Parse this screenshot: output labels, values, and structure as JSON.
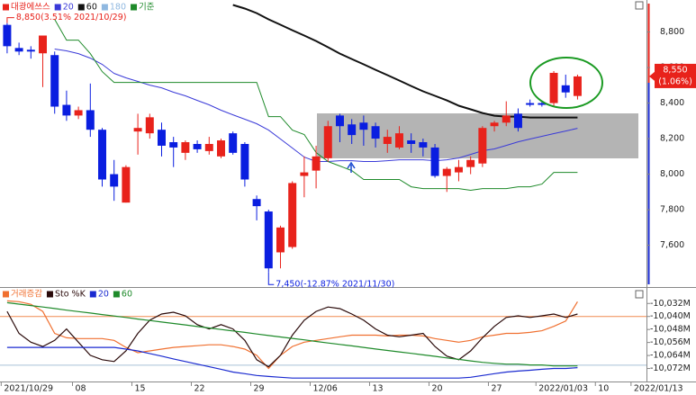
{
  "chart_data": [
    {
      "type": "candlestick",
      "name": "대광에쓰스",
      "up_color": "#e8221b",
      "down_color": "#0a1ee0",
      "open": [
        8840,
        8710,
        8700,
        8680,
        8670,
        8390,
        8330,
        8360,
        8250,
        8000,
        7840,
        8240,
        8230,
        8250,
        8180,
        8120,
        8170,
        8130,
        8100,
        8230,
        8170,
        7860,
        7790,
        7560,
        7590,
        7990,
        8020,
        8090,
        8330,
        8280,
        8290,
        8270,
        8170,
        8150,
        8190,
        8180,
        8150,
        7990,
        8010,
        8040,
        8060,
        8270,
        8290,
        8340,
        8400,
        8400,
        8400,
        8500,
        8440
      ],
      "high": [
        8850,
        8740,
        8720,
        8780,
        8690,
        8470,
        8380,
        8510,
        8260,
        8080,
        8050,
        8340,
        8340,
        8290,
        8210,
        8190,
        8190,
        8210,
        8200,
        8240,
        8180,
        7880,
        7800,
        7710,
        7960,
        8100,
        8160,
        8300,
        8340,
        8310,
        8330,
        8290,
        8250,
        8270,
        8230,
        8200,
        8170,
        8040,
        8080,
        8100,
        8270,
        8300,
        8410,
        8370,
        8420,
        8410,
        8580,
        8560,
        8560
      ],
      "low": [
        8680,
        8670,
        8650,
        8490,
        8340,
        8300,
        8310,
        8210,
        7930,
        7850,
        7840,
        8110,
        8200,
        8100,
        8040,
        8080,
        8120,
        8110,
        8090,
        8110,
        7930,
        7740,
        7450,
        7470,
        7580,
        7870,
        7920,
        8070,
        8180,
        8170,
        8160,
        8150,
        8120,
        8140,
        8120,
        8100,
        7980,
        7900,
        7960,
        8000,
        8040,
        8240,
        8270,
        8240,
        8380,
        8380,
        8380,
        8430,
        8420
      ],
      "close": [
        8720,
        8690,
        8690,
        8780,
        8380,
        8330,
        8360,
        8250,
        7970,
        7930,
        8040,
        8260,
        8320,
        8160,
        8150,
        8180,
        8140,
        8170,
        8190,
        8120,
        7970,
        7820,
        7470,
        7700,
        7950,
        8010,
        8100,
        8270,
        8270,
        8220,
        8250,
        8200,
        8210,
        8230,
        8170,
        8150,
        7990,
        8030,
        8040,
        8080,
        8260,
        8290,
        8330,
        8260,
        8390,
        8390,
        8570,
        8460,
        8550
      ],
      "series": [
        {
          "name": "20",
          "color": "#3a3ad8",
          "width": 1,
          "values": [
            null,
            null,
            null,
            null,
            8704,
            8694,
            8678,
            8653,
            8618,
            8567,
            8542,
            8522,
            8501,
            8486,
            8461,
            8441,
            8415,
            8390,
            8360,
            8334,
            8309,
            8284,
            8248,
            8198,
            8147,
            8096,
            8071,
            8071,
            8076,
            8076,
            8071,
            8071,
            8076,
            8081,
            8081,
            8081,
            8076,
            8081,
            8091,
            8111,
            8132,
            8142,
            8162,
            8182,
            8198,
            8213,
            8228,
            8243,
            8258
          ]
        },
        {
          "name": "60",
          "color": "#111111",
          "width": 2,
          "values": [
            null,
            null,
            null,
            null,
            null,
            null,
            null,
            null,
            null,
            null,
            null,
            null,
            null,
            null,
            null,
            null,
            null,
            null,
            null,
            8952,
            8932,
            8906,
            8871,
            8841,
            8810,
            8780,
            8749,
            8714,
            8678,
            8648,
            8618,
            8587,
            8557,
            8527,
            8496,
            8466,
            8441,
            8415,
            8385,
            8365,
            8344,
            8329,
            8324,
            8324,
            8319,
            8319,
            8319,
            8319,
            8319
          ]
        },
        {
          "name": "180",
          "color": "#8fb8e0",
          "width": 1,
          "values": [
            null,
            null,
            null,
            null,
            null,
            null,
            null,
            null,
            null,
            null,
            null,
            null,
            null,
            null,
            null,
            null,
            null,
            null,
            null,
            null,
            null,
            null,
            null,
            null,
            null,
            null,
            null,
            null,
            null,
            null,
            null,
            null,
            null,
            null,
            null,
            null,
            null,
            null,
            null,
            null,
            null,
            null,
            null,
            null,
            null,
            null,
            null,
            null,
            null
          ]
        },
        {
          "name": "기준",
          "color": "#1e8a2a",
          "width": 1,
          "values": [
            null,
            null,
            null,
            null,
            8871,
            8754,
            8754,
            8678,
            8577,
            8516,
            8516,
            8516,
            8516,
            8516,
            8516,
            8516,
            8516,
            8516,
            8516,
            8516,
            8516,
            8516,
            8324,
            8324,
            8248,
            8223,
            8122,
            8071,
            8046,
            8020,
            7970,
            7970,
            7970,
            7970,
            7929,
            7919,
            7919,
            7919,
            7919,
            7909,
            7919,
            7919,
            7919,
            7929,
            7929,
            7944,
            8010,
            8010,
            8010
          ]
        }
      ],
      "annotations": [
        {
          "text": "8,850(3.51% 2021/10/29)",
          "color": "#e8221b"
        },
        {
          "text": "7,450(-12.87% 2021/11/30)",
          "color": "#0a1ee0"
        }
      ],
      "last_label": "8,550",
      "last_change": "(1.06%)",
      "last_color": "#e8221b",
      "xlim": [
        -0.6,
        53.8
      ],
      "ylim": [
        7370,
        8980
      ],
      "yticks": [
        {
          "value": 8800,
          "label": "8,800"
        },
        {
          "value": 8600,
          "label": "8,600"
        },
        {
          "value": 8400,
          "label": "8,400"
        },
        {
          "value": 8200,
          "label": "8,200"
        },
        {
          "value": 8000,
          "label": "8,000"
        },
        {
          "value": 7800,
          "label": "7,800"
        },
        {
          "value": 7600,
          "label": "7,600"
        }
      ]
    },
    {
      "type": "line",
      "series": [
        {
          "name": "거래증감",
          "color": "#f07030",
          "values": [
            -10030.4,
            -10030.9,
            -10032.5,
            -10036.9,
            -10050.4,
            -10053.1,
            -10053.6,
            -10053.6,
            -10053.6,
            -10054.7,
            -10059.0,
            -10062.3,
            -10061.2,
            -10060.1,
            -10059.0,
            -10058.5,
            -10058.0,
            -10057.4,
            -10057.4,
            -10058.5,
            -10060.1,
            -10063.9,
            -10072.0,
            -10063.9,
            -10058.5,
            -10055.8,
            -10054.7,
            -10053.6,
            -10052.5,
            -10051.5,
            -10051.5,
            -10051.5,
            -10052.0,
            -10051.5,
            -10051.5,
            -10052.0,
            -10053.6,
            -10054.7,
            -10055.8,
            -10054.7,
            -10052.5,
            -10051.5,
            -10050.4,
            -10050.4,
            -10049.8,
            -10048.8,
            -10046.1,
            -10042.8,
            -10030.9
          ]
        },
        {
          "name": "Sto %K",
          "color": "#2a0a0a",
          "values": [
            -10036.9,
            -10050.4,
            -10055.8,
            -10058.5,
            -10054.7,
            -10047.7,
            -10055.8,
            -10063.9,
            -10066.6,
            -10067.7,
            -10061.2,
            -10050.4,
            -10042.3,
            -10038.5,
            -10037.4,
            -10039.6,
            -10045.0,
            -10047.7,
            -10045.0,
            -10047.7,
            -10054.7,
            -10066.6,
            -10070.9,
            -10063.9,
            -10051.5,
            -10042.3,
            -10036.9,
            -10034.2,
            -10035.2,
            -10038.5,
            -10042.3,
            -10047.7,
            -10051.5,
            -10052.5,
            -10051.5,
            -10050.4,
            -10058.5,
            -10064.4,
            -10066.6,
            -10061.2,
            -10053.1,
            -10046.1,
            -10040.6,
            -10039.6,
            -10040.6,
            -10039.6,
            -10038.5,
            -10040.6,
            -10038.5
          ]
        },
        {
          "name": "20",
          "color": "#1a2ad0",
          "values": [
            -10059.0,
            -10059.0,
            -10059.0,
            -10059.0,
            -10059.0,
            -10059.0,
            -10059.0,
            -10059.0,
            -10059.0,
            -10059.0,
            -10060.1,
            -10061.2,
            -10062.8,
            -10064.4,
            -10066.1,
            -10067.7,
            -10069.3,
            -10070.9,
            -10072.5,
            -10074.2,
            -10075.2,
            -10076.3,
            -10076.9,
            -10077.4,
            -10077.9,
            -10077.9,
            -10077.9,
            -10077.9,
            -10077.9,
            -10077.9,
            -10077.9,
            -10077.9,
            -10077.9,
            -10077.9,
            -10077.9,
            -10077.9,
            -10077.9,
            -10077.9,
            -10077.9,
            -10077.4,
            -10076.3,
            -10075.2,
            -10074.2,
            -10073.6,
            -10073.1,
            -10072.5,
            -10072.0,
            -10072.0,
            -10071.5
          ]
        },
        {
          "name": "60",
          "color": "#1e8a2a",
          "values": [
            -10031.5,
            -10032.4,
            -10033.3,
            -10034.2,
            -10035.1,
            -10036.1,
            -10037.0,
            -10037.9,
            -10038.8,
            -10039.7,
            -10040.6,
            -10041.6,
            -10042.5,
            -10043.4,
            -10044.3,
            -10045.2,
            -10046.2,
            -10047.1,
            -10048.0,
            -10048.9,
            -10049.8,
            -10050.8,
            -10051.7,
            -10052.6,
            -10053.5,
            -10054.4,
            -10055.4,
            -10056.3,
            -10057.2,
            -10058.1,
            -10059.0,
            -10060.0,
            -10060.9,
            -10061.8,
            -10062.7,
            -10063.6,
            -10064.5,
            -10065.5,
            -10066.4,
            -10067.3,
            -10068.2,
            -10068.8,
            -10069.3,
            -10069.3,
            -10069.8,
            -10069.8,
            -10070.4,
            -10070.4,
            -10070.4
          ]
        }
      ],
      "reference_lines": [
        {
          "value": -10040,
          "color": "#f08a50"
        },
        {
          "value": -10070,
          "color": "#a8c0d8"
        }
      ],
      "xlim": [
        -0.6,
        53.8
      ],
      "ylim": [
        -10080,
        -10023
      ],
      "yticks": [
        {
          "value": -10032,
          "label": "-10,032M"
        },
        {
          "value": -10040,
          "label": "-10,040M"
        },
        {
          "value": -10048,
          "label": "-10,048M"
        },
        {
          "value": -10056,
          "label": "-10,056M"
        },
        {
          "value": -10064,
          "label": "-10,064M"
        },
        {
          "value": -10072,
          "label": "-10,072M"
        }
      ],
      "xticks": [
        {
          "value": 0,
          "label": "2021/10/29"
        },
        {
          "value": 6,
          "label": "08"
        },
        {
          "value": 11,
          "label": "15"
        },
        {
          "value": 16,
          "label": "22"
        },
        {
          "value": 21,
          "label": "29"
        },
        {
          "value": 26,
          "label": "12/06"
        },
        {
          "value": 31,
          "label": "13"
        },
        {
          "value": 36,
          "label": "20"
        },
        {
          "value": 41,
          "label": "27"
        },
        {
          "value": 45,
          "label": "2022/01/03"
        },
        {
          "value": 50,
          "label": "10"
        },
        {
          "value": 53,
          "label": "2022/01/13"
        }
      ]
    }
  ]
}
